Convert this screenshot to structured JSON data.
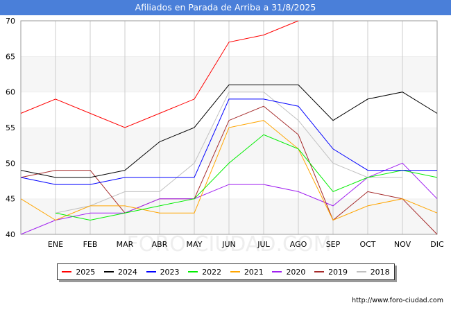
{
  "title": "Afiliados en Parada de Arriba a 31/8/2025",
  "source": "http://www.foro-ciudad.com",
  "watermark": "FORO-CIUDAD.COM",
  "chart_data": {
    "type": "line",
    "title": "Afiliados en Parada de Arriba a 31/8/2025",
    "xlabel": "",
    "ylabel": "",
    "categories": [
      "",
      "ENE",
      "FEB",
      "MAR",
      "ABR",
      "MAY",
      "JUN",
      "JUL",
      "AGO",
      "SEP",
      "OCT",
      "NOV",
      "DIC"
    ],
    "ylim": [
      40,
      70
    ],
    "yticks": [
      40,
      45,
      50,
      55,
      60,
      65,
      70
    ],
    "grid": true,
    "legend_position": "bottom",
    "series": [
      {
        "name": "2025",
        "color": "#ff0000",
        "values": [
          57,
          59,
          57,
          55,
          57,
          59,
          67,
          68,
          70,
          null,
          null,
          null,
          null
        ]
      },
      {
        "name": "2024",
        "color": "#000000",
        "values": [
          49,
          48,
          48,
          49,
          53,
          55,
          61,
          61,
          61,
          56,
          59,
          60,
          57
        ]
      },
      {
        "name": "2023",
        "color": "#0000ff",
        "values": [
          48,
          47,
          47,
          48,
          48,
          48,
          59,
          59,
          58,
          52,
          49,
          49,
          49
        ]
      },
      {
        "name": "2022",
        "color": "#00ee00",
        "values": [
          null,
          43,
          42,
          43,
          44,
          45,
          50,
          54,
          52,
          46,
          48,
          49,
          48
        ]
      },
      {
        "name": "2021",
        "color": "#ffa500",
        "values": [
          45,
          42,
          44,
          44,
          43,
          43,
          55,
          56,
          52,
          42,
          44,
          45,
          43
        ]
      },
      {
        "name": "2020",
        "color": "#a020f0",
        "values": [
          40,
          42,
          43,
          43,
          45,
          45,
          47,
          47,
          46,
          44,
          48,
          50,
          45
        ]
      },
      {
        "name": "2019",
        "color": "#a52a2a",
        "values": [
          48,
          49,
          49,
          43,
          45,
          45,
          56,
          58,
          54,
          42,
          46,
          45,
          40
        ]
      },
      {
        "name": "2018",
        "color": "#c0c0c0",
        "values": [
          null,
          43,
          44,
          46,
          46,
          50,
          60,
          60,
          56,
          50,
          48,
          48,
          null
        ]
      }
    ]
  }
}
